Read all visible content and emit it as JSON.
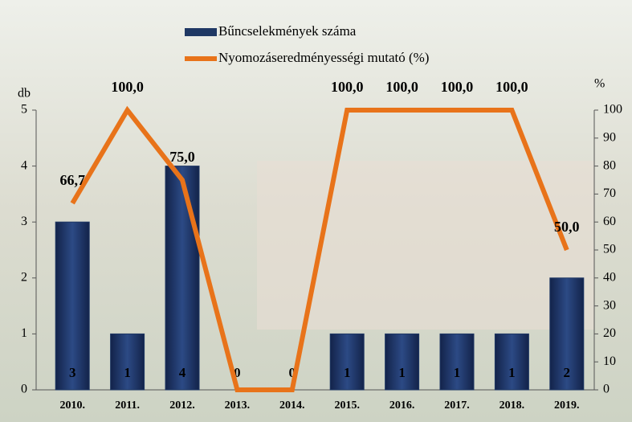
{
  "chart_data": {
    "type": "bar-line",
    "categories": [
      "2010.",
      "2011.",
      "2012.",
      "2013.",
      "2014.",
      "2015.",
      "2016.",
      "2017.",
      "2018.",
      "2019."
    ],
    "series": [
      {
        "name": "Bűncselekmények száma",
        "type": "bar",
        "color": "#1f3864",
        "label_color": "#ffffff",
        "values": [
          3,
          1,
          4,
          0,
          0,
          1,
          1,
          1,
          1,
          2
        ]
      },
      {
        "name": "Nyomozáseredményességi mutató (%)",
        "type": "line",
        "axis": "y2",
        "color": "#e8731a",
        "values": [
          66.7,
          100,
          75,
          0,
          0,
          100,
          100,
          100,
          100,
          50
        ],
        "value_labels": [
          "66,7",
          "100,0",
          "75,0",
          null,
          null,
          "100,0",
          "100,0",
          "100,0",
          "100,0",
          "50,0"
        ]
      }
    ],
    "ylabel": "db",
    "y2label": "%",
    "ylim": [
      0,
      5
    ],
    "yticks": [
      0,
      1,
      2,
      3,
      4,
      5
    ],
    "y2lim": [
      0,
      100
    ],
    "y2ticks": [
      0,
      10,
      20,
      30,
      40,
      50,
      60,
      70,
      80,
      90,
      100
    ],
    "grid": false
  }
}
